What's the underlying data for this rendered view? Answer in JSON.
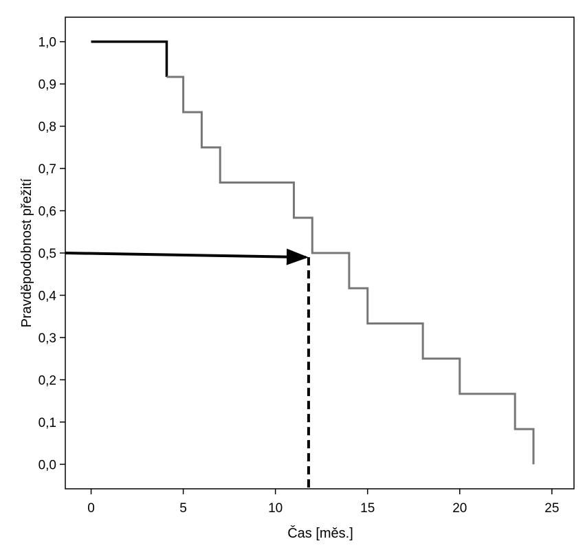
{
  "chart_data": {
    "type": "line",
    "title": "",
    "xlabel": "Čas [měs.]",
    "ylabel": "Pravděpodobnost přežití",
    "xlim": [
      -1.4,
      26.2
    ],
    "ylim": [
      -0.058,
      1.058
    ],
    "x_ticks": [
      0,
      5,
      10,
      15,
      20,
      25
    ],
    "x_tick_labels": [
      "0",
      "5",
      "10",
      "15",
      "20",
      "25"
    ],
    "y_ticks": [
      0.0,
      0.1,
      0.2,
      0.3,
      0.4,
      0.5,
      0.6,
      0.7,
      0.8,
      0.9,
      1.0
    ],
    "y_tick_labels": [
      "0,0",
      "0,1",
      "0,2",
      "0,3",
      "0,4",
      "0,5",
      "0,6",
      "0,7",
      "0,8",
      "0,9",
      "1,0"
    ],
    "grid": false,
    "legend": "none",
    "series": [
      {
        "style": "step",
        "color": "#777777",
        "highlight_color": "#000000",
        "x": [
          0,
          4.1,
          5,
          6,
          7,
          11,
          12,
          14,
          15,
          18,
          20,
          23,
          24
        ],
        "y": [
          1.0,
          0.9167,
          0.8333,
          0.75,
          0.6667,
          0.5833,
          0.5,
          0.4167,
          0.3333,
          0.25,
          0.1667,
          0.0833,
          0.0
        ]
      }
    ],
    "annotations": [
      {
        "type": "arrow",
        "from": [
          -1.4,
          0.5
        ],
        "to": [
          11.8,
          0.49
        ],
        "color": "#000000"
      },
      {
        "type": "dashed-vertical",
        "x": 11.8,
        "y_from": 0.49,
        "y_to": -0.058,
        "color": "#000000"
      }
    ]
  }
}
